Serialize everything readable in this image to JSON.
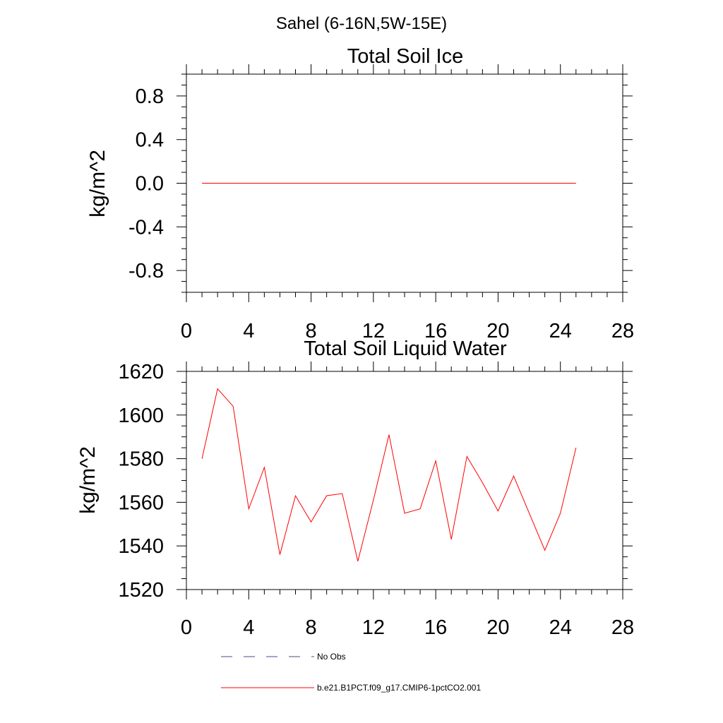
{
  "figure_title": "Sahel (6-16N,5W-15E)",
  "chart_data": [
    {
      "type": "line",
      "title": "Total Soil Ice",
      "xlabel": "",
      "ylabel": "kg/m^2",
      "xlim": [
        0,
        28
      ],
      "ylim": [
        -1.0,
        1.0
      ],
      "x_ticks": [
        0,
        4,
        8,
        12,
        16,
        20,
        24,
        28
      ],
      "x_tick_labels": [
        "0",
        "4",
        "8",
        "12",
        "16",
        "20",
        "24",
        "28"
      ],
      "y_ticks": [
        -0.8,
        -0.4,
        0.0,
        0.4,
        0.8
      ],
      "y_tick_labels": [
        "-0.8",
        "-0.4",
        "0.0",
        "0.4",
        "0.8"
      ],
      "grid": false,
      "series": [
        {
          "name": "b.e21.B1PCT.f09_g17.CMIP6-1pctCO2.001",
          "color": "#ff0000",
          "x": [
            1,
            2,
            3,
            4,
            5,
            6,
            7,
            8,
            9,
            10,
            11,
            12,
            13,
            14,
            15,
            16,
            17,
            18,
            19,
            20,
            21,
            22,
            23,
            24,
            25
          ],
          "values": [
            0,
            0,
            0,
            0,
            0,
            0,
            0,
            0,
            0,
            0,
            0,
            0,
            0,
            0,
            0,
            0,
            0,
            0,
            0,
            0,
            0,
            0,
            0,
            0,
            0
          ]
        }
      ]
    },
    {
      "type": "line",
      "title": "Total Soil Liquid Water",
      "xlabel": "",
      "ylabel": "kg/m^2",
      "xlim": [
        0,
        28
      ],
      "ylim": [
        1520,
        1620
      ],
      "x_ticks": [
        0,
        4,
        8,
        12,
        16,
        20,
        24,
        28
      ],
      "x_tick_labels": [
        "0",
        "4",
        "8",
        "12",
        "16",
        "20",
        "24",
        "28"
      ],
      "y_ticks": [
        1520,
        1540,
        1560,
        1580,
        1600,
        1620
      ],
      "y_tick_labels": [
        "1520",
        "1540",
        "1560",
        "1580",
        "1600",
        "1620"
      ],
      "grid": false,
      "series": [
        {
          "name": "b.e21.B1PCT.f09_g17.CMIP6-1pctCO2.001",
          "color": "#ff0000",
          "x": [
            1,
            2,
            3,
            4,
            5,
            6,
            7,
            8,
            9,
            10,
            11,
            12,
            13,
            14,
            15,
            16,
            17,
            18,
            19,
            20,
            21,
            22,
            23,
            24,
            25
          ],
          "values": [
            1580,
            1612,
            1604,
            1557,
            1576,
            1536,
            1563,
            1551,
            1563,
            1564,
            1533,
            1561,
            1591,
            1555,
            1557,
            1579,
            1543,
            1581,
            1569,
            1556,
            1572,
            1555,
            1538,
            1555,
            1585
          ]
        }
      ]
    }
  ],
  "legend": {
    "placement": "bottom-left",
    "items": [
      {
        "label": "No Obs",
        "color": "#4a4a8a",
        "dash": "dashed"
      },
      {
        "label": "b.e21.B1PCT.f09_g17.CMIP6-1pctCO2.001",
        "color": "#ff0000",
        "dash": "solid"
      }
    ]
  }
}
